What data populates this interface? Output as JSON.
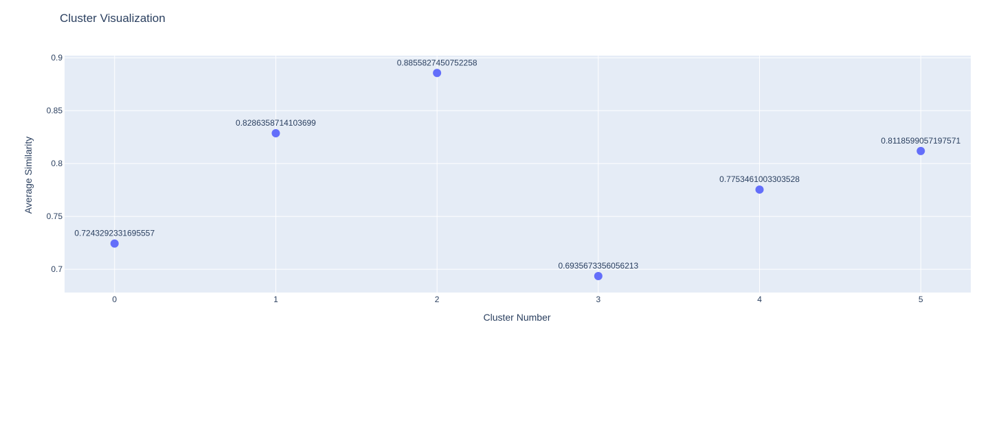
{
  "chart_data": {
    "type": "scatter",
    "title": "Cluster Visualization",
    "xlabel": "Cluster Number",
    "ylabel": "Average Similarity",
    "x": [
      0,
      1,
      2,
      3,
      4,
      5
    ],
    "y": [
      0.7243292331695557,
      0.8286358714103699,
      0.8855827450752258,
      0.6935673356056213,
      0.7753461003303528,
      0.8118599057197571
    ],
    "labels": [
      "0.7243292331695557",
      "0.8286358714103699",
      "0.8855827450752258",
      "0.6935673356056213",
      "0.7753461003303528",
      "0.8118599057197571"
    ],
    "x_ticks": [
      "0",
      "1",
      "2",
      "3",
      "4",
      "5"
    ],
    "y_ticks": [
      "0.7",
      "0.75",
      "0.8",
      "0.85",
      "0.9"
    ],
    "xlim": [
      -0.31,
      5.31
    ],
    "ylim": [
      0.678,
      0.902
    ],
    "grid": true,
    "colors": {
      "marker": "#636efa",
      "plot_bg": "#e5ecf6",
      "grid": "#ffffff",
      "text": "#2a3f5f"
    }
  }
}
